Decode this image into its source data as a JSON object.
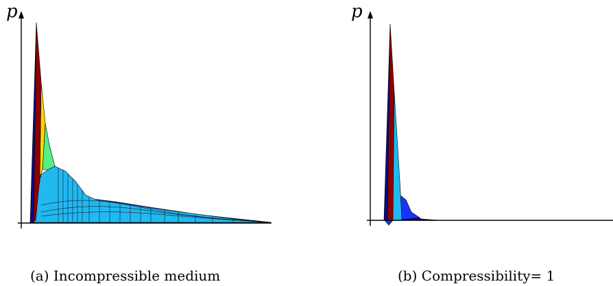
{
  "panels": [
    {
      "id": "a",
      "axis_label": "p",
      "caption": "(a) Incompressible medium"
    },
    {
      "id": "b",
      "axis_label": "p",
      "caption": "(b) Compressibility= 1"
    }
  ],
  "colors": {
    "dark_red": "#8b0000",
    "yellow": "#ffd800",
    "green": "#55ee88",
    "cyan": "#22b8f0",
    "blue": "#1a33ff",
    "navy": "#0a0a8a",
    "axis": "#000000"
  }
}
